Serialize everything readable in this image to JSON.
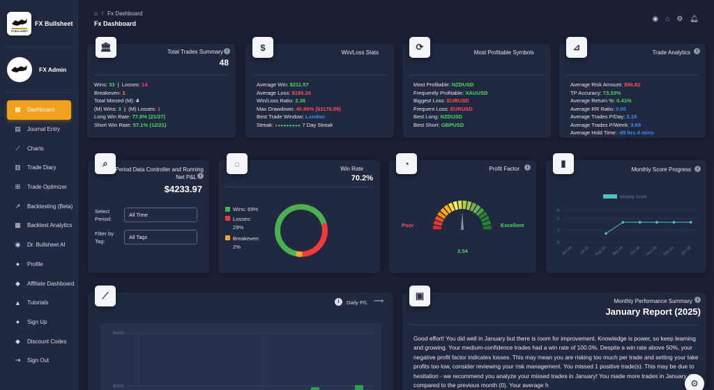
{
  "brand": {
    "name": "FX Bullsheet",
    "logo_text": "FX BULLSHEET"
  },
  "user": {
    "name": "FX Admin"
  },
  "nav": [
    {
      "label": "Dashboard",
      "icon": "dashboard-icon",
      "active": true
    },
    {
      "label": "Journal Entry",
      "icon": "journal-icon"
    },
    {
      "label": "Charts",
      "icon": "charts-icon"
    },
    {
      "label": "Trade Diary",
      "icon": "diary-icon"
    },
    {
      "label": "Trade Optimizer",
      "icon": "optimizer-icon"
    },
    {
      "label": "Backtesting (Beta)",
      "icon": "backtesting-icon"
    },
    {
      "label": "Backtest Analytics",
      "icon": "analytics-icon"
    },
    {
      "label": "Dr. Bullsheet AI",
      "icon": "ai-icon"
    },
    {
      "label": "Profile",
      "icon": "profile-icon"
    },
    {
      "label": "Affiliate Dashboard",
      "icon": "affiliate-icon"
    },
    {
      "label": "Tutorials",
      "icon": "tutorials-icon"
    },
    {
      "label": "Sign Up",
      "icon": "signup-icon"
    },
    {
      "label": "Discount Codes",
      "icon": "discount-icon"
    },
    {
      "label": "Sign Out",
      "icon": "signout-icon"
    }
  ],
  "header": {
    "crumb": "Fx Dashboard",
    "title": "Fx Dashboard"
  },
  "total_trades": {
    "title": "Total Trades Summary",
    "value": "48",
    "wins_label": "Wins:",
    "wins": "33",
    "losses_label": "Losses:",
    "losses": "14",
    "breakeven_label": "Breakeven:",
    "breakeven": "1",
    "missed_label": "Total Missed (M):",
    "missed": "4",
    "m_wins_label": "(M) Wins:",
    "m_wins": "3",
    "m_losses_label": "(M) Losses:",
    "m_losses": "1",
    "long_label": "Long Win Rate:",
    "long": "77.8% (21/27)",
    "short_label": "Short Win Rate:",
    "short": "57.1% (12/21)"
  },
  "winloss": {
    "title": "Win/Loss Stats",
    "avg_win_label": "Average Win:",
    "avg_win": "$211.57",
    "avg_loss_label": "Average Loss:",
    "avg_loss": "$196.28",
    "ratio_label": "Win/Loss Ratio:",
    "ratio": "2.36",
    "dd_label": "Max Drawdown:",
    "dd": "40.86% ($1176.99)",
    "window_label": "Best Trade Window:",
    "window": "London",
    "streak_label": "Streak:",
    "streak": "7 Day Streak"
  },
  "symbols": {
    "title": "Most Profitable Symbols",
    "most_label": "Most Profitable:",
    "most": "NZDUSD",
    "freq_label": "Frequently Profitable:",
    "freq": "XAUUSD",
    "biggest_label": "Biggest Loss:",
    "biggest": "EURUSD",
    "freq_loss_label": "Frequent Loss:",
    "freq_loss": "EURUSD",
    "best_long_label": "Best Long:",
    "best_long": "NZDUSD",
    "best_short_label": "Best Short:",
    "best_short": "GBPUSD"
  },
  "analytics": {
    "title": "Trade Analytics",
    "risk_label": "Average Risk Amount:",
    "risk": "$96.82",
    "tp_label": "TP Accuracy:",
    "tp": "73.33%",
    "ret_label": "Average Return %:",
    "ret": "0.41%",
    "rr_label": "Average RR Ratio:",
    "rr": "0.00",
    "pday_label": "Average Trades P/Day:",
    "pday": "2.18",
    "pweek_label": "Average Trades P/Week:",
    "pweek": "3.69",
    "hold_label": "Average Hold Time:",
    "hold": "-85 hrs 4 mins"
  },
  "period": {
    "title_line1": "Period Data Controller and Running",
    "title_line2": "Net P&L",
    "value": "$4233.97",
    "period_label_1": "Select",
    "period_label_2": "Period:",
    "period_value": "All Time",
    "tag_label_1": "Filter by",
    "tag_label_2": "Tag:",
    "tag_value": "All Tags"
  },
  "winrate": {
    "title": "Win Rate",
    "value": "70.2%",
    "wins_label": "Wins: 69%",
    "losses_label_1": "Losses:",
    "losses_label_2": "29%",
    "be_label_1": "Breakeven:",
    "be_label_2": "2%",
    "colors": {
      "wins": "#4caf50",
      "losses": "#ef3b3b",
      "breakeven": "#f7a53a"
    },
    "slices": [
      0.69,
      0.29,
      0.02
    ]
  },
  "profit_factor": {
    "title": "Profit Factor",
    "poor": "Poor",
    "excellent": "Excellent",
    "value": "2.54"
  },
  "monthly": {
    "title": "Monthly Score Progress",
    "chart_data": {
      "type": "line",
      "legend": "Monthly Score",
      "categories": [
        "Jun 24",
        "Jul 24",
        "Aug 24",
        "Sep 24",
        "Oct 24",
        "Nov 24",
        "Dec 24",
        "Jan 25"
      ],
      "y_ticks": [
        "8",
        "6",
        "3",
        "0"
      ],
      "ylim": [
        0,
        9
      ],
      "values": [
        null,
        null,
        2.2,
        5,
        5,
        5,
        5,
        5
      ],
      "color": "#4fc3c9"
    }
  },
  "daily": {
    "title": "Daily P/L",
    "chart_data": {
      "type": "bar",
      "y_ticks": [
        "$1000",
        "$1000"
      ]
    }
  },
  "report": {
    "title": "Monthly Performance Summary",
    "heading": "January Report (2025)",
    "text": "Good effort! You did well in January but there is room for improvement. Knowledge is power, so keep learning and growing. Your medium-confidence trades had a win rate of 100.0%. Despite a win rate above 50%, your negative profit factor indicates losses. This may mean you are risking too much per trade and setting your take profits too low, consider reviewing your risk management. You missed 1 positive trade(s). This may be due to hesitation - we recommend you analyze your missed trades in January! You made more trades in January (2) compared to the previous month (0). Your average h"
  }
}
